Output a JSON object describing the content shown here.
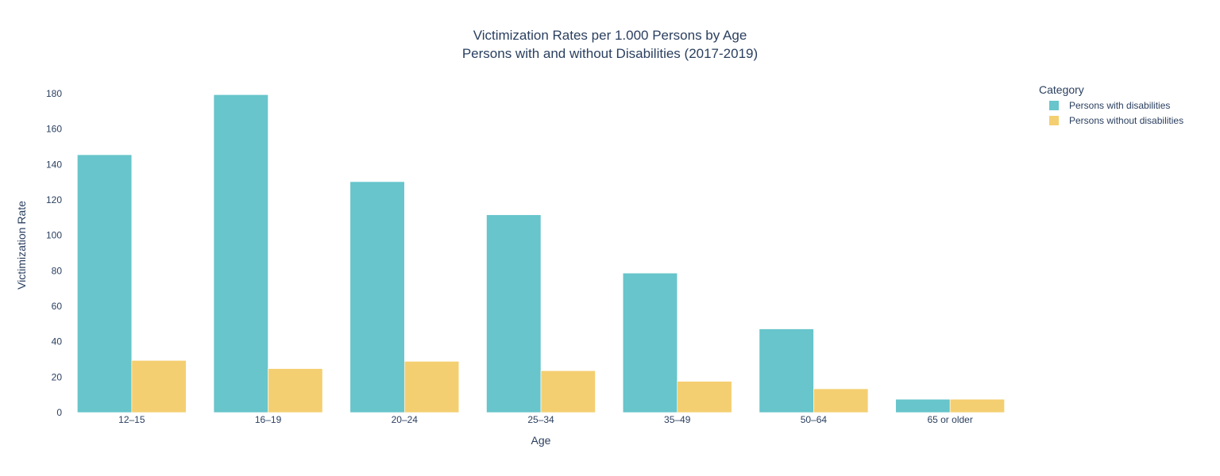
{
  "chart_data": {
    "type": "bar",
    "title_line1": "Victimization Rates per 1.000 Persons by Age",
    "title_line2": "Persons with and without Disabilities (2017-2019)",
    "xlabel": "Age",
    "ylabel": "Victimization Rate",
    "categories": [
      "12–15",
      "16–19",
      "20–24",
      "25–34",
      "35–49",
      "50–64",
      "65 or older"
    ],
    "series": [
      {
        "name": "Persons with disabilities",
        "color": "#67c5cb",
        "values": [
          145.5,
          179.4,
          130.3,
          111.6,
          78.7,
          47.2,
          7.5
        ]
      },
      {
        "name": "Persons without disabilities",
        "color": "#f4cf71",
        "values": [
          29.4,
          24.8,
          28.9,
          23.6,
          17.6,
          13.4,
          7.5
        ]
      }
    ],
    "ylim": [
      0,
      180
    ],
    "yticks": [
      0,
      20,
      40,
      60,
      80,
      100,
      120,
      140,
      160,
      180
    ],
    "legend": {
      "title": "Category",
      "placement": "top-right"
    },
    "grid": false
  }
}
